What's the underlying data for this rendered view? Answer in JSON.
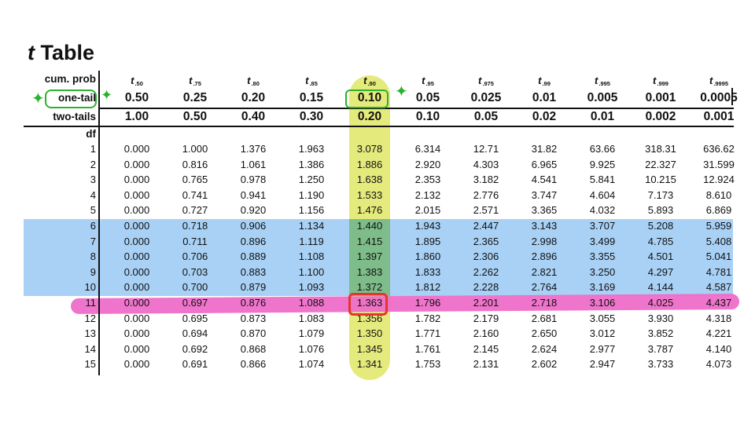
{
  "title": {
    "letter": "t",
    "word": "Table"
  },
  "row_labels": {
    "cum_prob": "cum. prob",
    "one_tail": "one-tail",
    "two_tails": "two-tails",
    "df": "df"
  },
  "columns": [
    {
      "t": "t",
      "sub": ".50",
      "cum": "",
      "one": "0.50",
      "two": "1.00"
    },
    {
      "t": "t",
      "sub": ".75",
      "cum": "",
      "one": "0.25",
      "two": "0.50"
    },
    {
      "t": "t",
      "sub": ".80",
      "cum": "",
      "one": "0.20",
      "two": "0.40"
    },
    {
      "t": "t",
      "sub": ".85",
      "cum": "",
      "one": "0.15",
      "two": "0.30"
    },
    {
      "t": "t",
      "sub": ".90",
      "cum": "",
      "one": "0.10",
      "two": "0.20"
    },
    {
      "t": "t",
      "sub": ".95",
      "cum": "",
      "one": "0.05",
      "two": "0.10"
    },
    {
      "t": "t",
      "sub": ".975",
      "cum": "",
      "one": "0.025",
      "two": "0.05"
    },
    {
      "t": "t",
      "sub": ".99",
      "cum": "",
      "one": "0.01",
      "two": "0.02"
    },
    {
      "t": "t",
      "sub": ".995",
      "cum": "",
      "one": "0.005",
      "two": "0.01"
    },
    {
      "t": "t",
      "sub": ".999",
      "cum": "",
      "one": "0.001",
      "two": "0.002"
    },
    {
      "t": "t",
      "sub": ".9995",
      "cum": "",
      "one": "0.0005",
      "two": "0.001"
    }
  ],
  "rows": [
    {
      "df": "1",
      "values": [
        "0.000",
        "1.000",
        "1.376",
        "1.963",
        "3.078",
        "6.314",
        "12.71",
        "31.82",
        "63.66",
        "318.31",
        "636.62"
      ]
    },
    {
      "df": "2",
      "values": [
        "0.000",
        "0.816",
        "1.061",
        "1.386",
        "1.886",
        "2.920",
        "4.303",
        "6.965",
        "9.925",
        "22.327",
        "31.599"
      ]
    },
    {
      "df": "3",
      "values": [
        "0.000",
        "0.765",
        "0.978",
        "1.250",
        "1.638",
        "2.353",
        "3.182",
        "4.541",
        "5.841",
        "10.215",
        "12.924"
      ]
    },
    {
      "df": "4",
      "values": [
        "0.000",
        "0.741",
        "0.941",
        "1.190",
        "1.533",
        "2.132",
        "2.776",
        "3.747",
        "4.604",
        "7.173",
        "8.610"
      ]
    },
    {
      "df": "5",
      "values": [
        "0.000",
        "0.727",
        "0.920",
        "1.156",
        "1.476",
        "2.015",
        "2.571",
        "3.365",
        "4.032",
        "5.893",
        "6.869"
      ]
    },
    {
      "df": "6",
      "values": [
        "0.000",
        "0.718",
        "0.906",
        "1.134",
        "1.440",
        "1.943",
        "2.447",
        "3.143",
        "3.707",
        "5.208",
        "5.959"
      ]
    },
    {
      "df": "7",
      "values": [
        "0.000",
        "0.711",
        "0.896",
        "1.119",
        "1.415",
        "1.895",
        "2.365",
        "2.998",
        "3.499",
        "4.785",
        "5.408"
      ]
    },
    {
      "df": "8",
      "values": [
        "0.000",
        "0.706",
        "0.889",
        "1.108",
        "1.397",
        "1.860",
        "2.306",
        "2.896",
        "3.355",
        "4.501",
        "5.041"
      ]
    },
    {
      "df": "9",
      "values": [
        "0.000",
        "0.703",
        "0.883",
        "1.100",
        "1.383",
        "1.833",
        "2.262",
        "2.821",
        "3.250",
        "4.297",
        "4.781"
      ]
    },
    {
      "df": "10",
      "values": [
        "0.000",
        "0.700",
        "0.879",
        "1.093",
        "1.372",
        "1.812",
        "2.228",
        "2.764",
        "3.169",
        "4.144",
        "4.587"
      ]
    },
    {
      "df": "11",
      "values": [
        "0.000",
        "0.697",
        "0.876",
        "1.088",
        "1.363",
        "1.796",
        "2.201",
        "2.718",
        "3.106",
        "4.025",
        "4.437"
      ]
    },
    {
      "df": "12",
      "values": [
        "0.000",
        "0.695",
        "0.873",
        "1.083",
        "1.356",
        "1.782",
        "2.179",
        "2.681",
        "3.055",
        "3.930",
        "4.318"
      ]
    },
    {
      "df": "13",
      "values": [
        "0.000",
        "0.694",
        "0.870",
        "1.079",
        "1.350",
        "1.771",
        "2.160",
        "2.650",
        "3.012",
        "3.852",
        "4.221"
      ]
    },
    {
      "df": "14",
      "values": [
        "0.000",
        "0.692",
        "0.868",
        "1.076",
        "1.345",
        "1.761",
        "2.145",
        "2.624",
        "2.977",
        "3.787",
        "4.140"
      ]
    },
    {
      "df": "15",
      "values": [
        "0.000",
        "0.691",
        "0.866",
        "1.074",
        "1.341",
        "1.753",
        "2.131",
        "2.602",
        "2.947",
        "3.733",
        "4.073"
      ]
    }
  ],
  "annotations": {
    "highlight_rows_df": [
      "6",
      "7",
      "8",
      "9",
      "10"
    ],
    "highlight_row_df": "11",
    "highlight_column": ".90",
    "boxed_cell": "1.363",
    "boxed_header": "0.10",
    "boxed_label": "one-tail",
    "colors": {
      "blue_band": "#a9d1f5",
      "yellow_column": "#e3e872",
      "pink_row": "#ee6dc8",
      "red_box": "#e4362e",
      "green_marks": "#2bb32a"
    }
  }
}
